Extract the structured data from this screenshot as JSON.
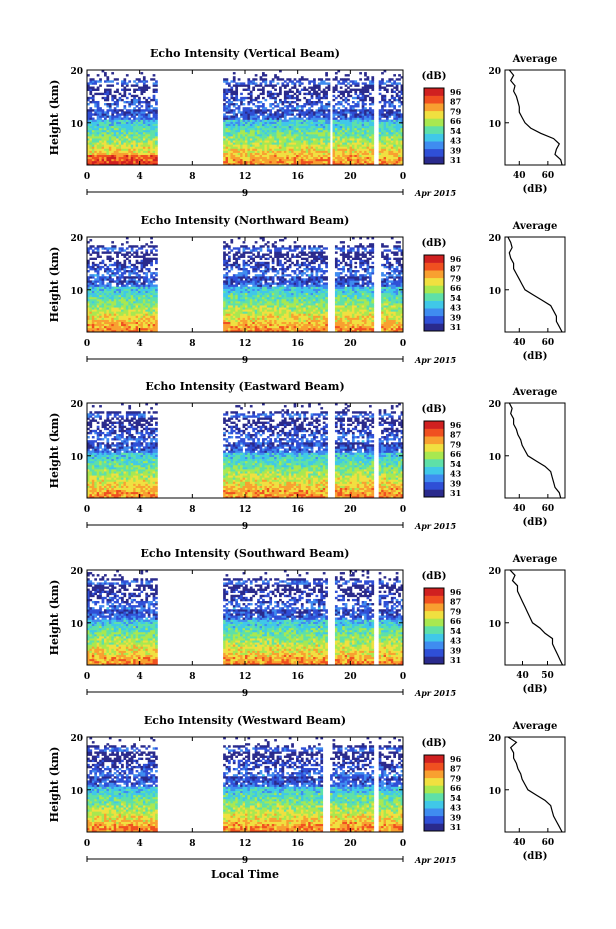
{
  "figure": {
    "bottom_xlabel": "Local Time"
  },
  "colorbar": {
    "unit": "(dB)",
    "ticks": [
      "31",
      "39",
      "43",
      "54",
      "66",
      "79",
      "87",
      "96"
    ],
    "colors": [
      "#2a2a8c",
      "#2f4fd6",
      "#3f8cf0",
      "#40c8e8",
      "#5ee0a8",
      "#a8e850",
      "#f0e040",
      "#f8a030",
      "#f05020",
      "#d02020"
    ]
  },
  "chart_data": [
    {
      "type": "heatmap",
      "title": "Echo Intensity (Vertical Beam)",
      "ylabel": "Height (km)",
      "ylim": [
        2,
        20
      ],
      "yticks": [
        "20",
        "10"
      ],
      "xticks": [
        "0",
        "4",
        "8",
        "12",
        "16",
        "20",
        "0"
      ],
      "date_label": "9",
      "month_label": "Apr 2015",
      "xlim": [
        0,
        24
      ],
      "data_gaps_hours": [
        [
          5.4,
          10.4
        ],
        [
          18.4,
          18.7
        ],
        [
          21.8,
          22.2
        ]
      ],
      "profile": {
        "title": "Average",
        "xlabel": "(dB)",
        "xticks": [
          "40",
          "60"
        ],
        "xlim": [
          30,
          72
        ],
        "heights": [
          20,
          19,
          18,
          17,
          16,
          15,
          14,
          13,
          12,
          11,
          10,
          9,
          8,
          7,
          6,
          5,
          4,
          3,
          2
        ],
        "values": [
          33,
          36,
          34,
          37,
          36,
          38,
          39,
          40,
          40,
          42,
          44,
          48,
          55,
          64,
          68,
          66,
          65,
          69,
          70
        ]
      }
    },
    {
      "type": "heatmap",
      "title": "Echo Intensity (Northward Beam)",
      "ylabel": "Height (km)",
      "ylim": [
        2,
        20
      ],
      "yticks": [
        "20",
        "10"
      ],
      "xticks": [
        "0",
        "4",
        "8",
        "12",
        "16",
        "20",
        "0"
      ],
      "date_label": "9",
      "month_label": "Apr 2015",
      "xlim": [
        0,
        24
      ],
      "data_gaps_hours": [
        [
          5.4,
          10.4
        ],
        [
          18.2,
          18.8
        ],
        [
          21.8,
          22.3
        ]
      ],
      "profile": {
        "title": "Average",
        "xlabel": "(dB)",
        "xticks": [
          "40",
          "60"
        ],
        "xlim": [
          30,
          72
        ],
        "heights": [
          20,
          19,
          18,
          17,
          16,
          15,
          14,
          13,
          12,
          11,
          10,
          9,
          8,
          7,
          6,
          5,
          4,
          3,
          2
        ],
        "values": [
          32,
          34,
          35,
          33,
          34,
          36,
          36,
          38,
          40,
          42,
          44,
          50,
          56,
          62,
          64,
          66,
          66,
          68,
          70
        ]
      }
    },
    {
      "type": "heatmap",
      "title": "Echo Intensity (Eastward Beam)",
      "ylabel": "Height (km)",
      "ylim": [
        2,
        20
      ],
      "yticks": [
        "20",
        "10"
      ],
      "xticks": [
        "0",
        "4",
        "8",
        "12",
        "16",
        "20",
        "0"
      ],
      "date_label": "9",
      "month_label": "Apr 2015",
      "xlim": [
        0,
        24
      ],
      "data_gaps_hours": [
        [
          5.4,
          10.4
        ],
        [
          18.2,
          18.8
        ],
        [
          21.8,
          22.2
        ]
      ],
      "profile": {
        "title": "Average",
        "xlabel": "(dB)",
        "xticks": [
          "40",
          "60"
        ],
        "xlim": [
          30,
          72
        ],
        "heights": [
          20,
          19,
          18,
          17,
          16,
          15,
          14,
          13,
          12,
          11,
          10,
          9,
          8,
          7,
          6,
          5,
          4,
          3,
          2
        ],
        "values": [
          33,
          35,
          34,
          36,
          36,
          38,
          39,
          41,
          42,
          44,
          46,
          52,
          58,
          62,
          63,
          64,
          65,
          68,
          69
        ]
      }
    },
    {
      "type": "heatmap",
      "title": "Echo Intensity (Southward Beam)",
      "ylabel": "Height (km)",
      "ylim": [
        2,
        20
      ],
      "yticks": [
        "20",
        "10"
      ],
      "xticks": [
        "0",
        "4",
        "8",
        "12",
        "16",
        "20",
        "0"
      ],
      "date_label": "9",
      "month_label": "Apr 2015",
      "xlim": [
        0,
        24
      ],
      "data_gaps_hours": [
        [
          5.4,
          10.4
        ],
        [
          18.2,
          18.8
        ],
        [
          21.8,
          22.2
        ]
      ],
      "profile": {
        "title": "Average",
        "xlabel": "(dB)",
        "xticks": [
          "40",
          "50"
        ],
        "xlim": [
          33,
          57
        ],
        "heights": [
          20,
          19,
          18,
          17,
          16,
          15,
          14,
          13,
          12,
          11,
          10,
          9,
          8,
          7,
          6,
          5,
          4,
          3,
          2
        ],
        "values": [
          35,
          37,
          36,
          38,
          38,
          39,
          40,
          41,
          42,
          43,
          44,
          47,
          49,
          52,
          52,
          53,
          54,
          55,
          56
        ]
      }
    },
    {
      "type": "heatmap",
      "title": "Echo Intensity (Westward Beam)",
      "ylabel": "Height (km)",
      "ylim": [
        2,
        20
      ],
      "yticks": [
        "20",
        "10"
      ],
      "xticks": [
        "0",
        "4",
        "8",
        "12",
        "16",
        "20",
        "0"
      ],
      "date_label": "9",
      "month_label": "Apr 2015",
      "xlim": [
        0,
        24
      ],
      "data_gaps_hours": [
        [
          5.4,
          10.4
        ],
        [
          17.9,
          18.4
        ],
        [
          21.8,
          22.2
        ]
      ],
      "profile": {
        "title": "Average",
        "xlabel": "(dB)",
        "xticks": [
          "40",
          "60"
        ],
        "xlim": [
          30,
          72
        ],
        "heights": [
          20,
          19,
          18,
          17,
          16,
          15,
          14,
          13,
          12,
          11,
          10,
          9,
          8,
          7,
          6,
          5,
          4,
          3,
          2
        ],
        "values": [
          32,
          38,
          34,
          36,
          36,
          38,
          39,
          41,
          42,
          44,
          46,
          52,
          58,
          62,
          63,
          64,
          66,
          68,
          70
        ]
      }
    }
  ]
}
